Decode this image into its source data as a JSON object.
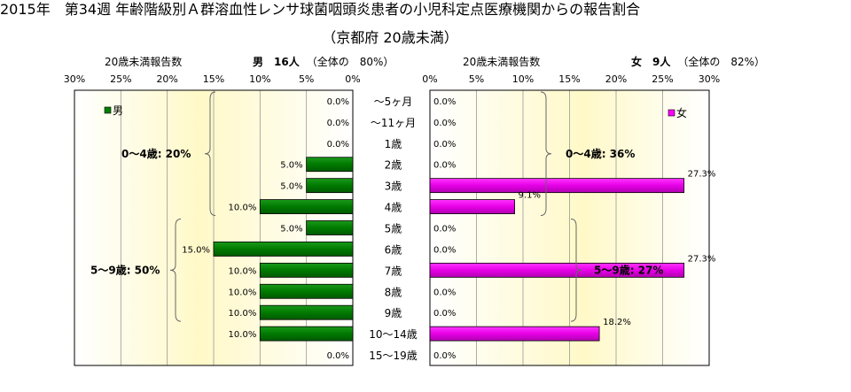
{
  "title": "2015年　第34週 年齢階級別Ａ群溶血性レンサ球菌咽頭炎患者の小児科定点医療機関からの報告割合",
  "subtitle": "（京都府 20歳未満）",
  "male_header": {
    "count_label": "20歳未満報告数",
    "summary": "男　16人",
    "ratio": "（全体の　80%）"
  },
  "female_header": {
    "count_label": "20歳未満報告数",
    "summary": "女　9人",
    "ratio": "（全体の　82%）"
  },
  "chart_data": [
    {
      "type": "bar",
      "orientation": "horizontal-reversed",
      "legend": "男",
      "legend_position": "top-left",
      "color": "#008000",
      "categories": [
        "〜5ヶ月",
        "〜11ヶ月",
        "1歳",
        "2歳",
        "3歳",
        "4歳",
        "5歳",
        "6歳",
        "7歳",
        "8歳",
        "9歳",
        "10〜14歳",
        "15〜19歳"
      ],
      "values": [
        0.0,
        0.0,
        0.0,
        5.0,
        5.0,
        10.0,
        5.0,
        15.0,
        10.0,
        10.0,
        10.0,
        10.0,
        0.0
      ],
      "labels": [
        "0.0%",
        "0.0%",
        "0.0%",
        "5.0%",
        "5.0%",
        "10.0%",
        "5.0%",
        "15.0%",
        "10.0%",
        "10.0%",
        "10.0%",
        "10.0%",
        "0.0%"
      ],
      "xlim": [
        0,
        30
      ],
      "ticks": [
        "30%",
        "25%",
        "20%",
        "15%",
        "10%",
        "5%",
        "0%"
      ],
      "groups": [
        {
          "label": "0〜4歳: 20%",
          "from": 0,
          "to": 5
        },
        {
          "label": "5〜9歳: 50%",
          "from": 6,
          "to": 10
        }
      ]
    },
    {
      "type": "bar",
      "orientation": "horizontal",
      "legend": "女",
      "legend_position": "top-right",
      "color": "#ff00ff",
      "categories": [
        "〜5ヶ月",
        "〜11ヶ月",
        "1歳",
        "2歳",
        "3歳",
        "4歳",
        "5歳",
        "6歳",
        "7歳",
        "8歳",
        "9歳",
        "10〜14歳",
        "15〜19歳"
      ],
      "values": [
        0.0,
        0.0,
        0.0,
        0.0,
        27.3,
        9.1,
        0.0,
        0.0,
        27.3,
        0.0,
        0.0,
        18.2,
        0.0
      ],
      "labels": [
        "0.0%",
        "0.0%",
        "0.0%",
        "0.0%",
        "27.3%",
        "9.1%",
        "0.0%",
        "0.0%",
        "27.3%",
        "0.0%",
        "0.0%",
        "18.2%",
        "0.0%"
      ],
      "xlim": [
        0,
        30
      ],
      "ticks": [
        "0%",
        "5%",
        "10%",
        "15%",
        "20%",
        "25%",
        "30%"
      ],
      "groups": [
        {
          "label": "0〜4歳: 36%",
          "from": 0,
          "to": 5
        },
        {
          "label": "5〜9歳: 27%",
          "from": 6,
          "to": 10
        }
      ]
    }
  ]
}
